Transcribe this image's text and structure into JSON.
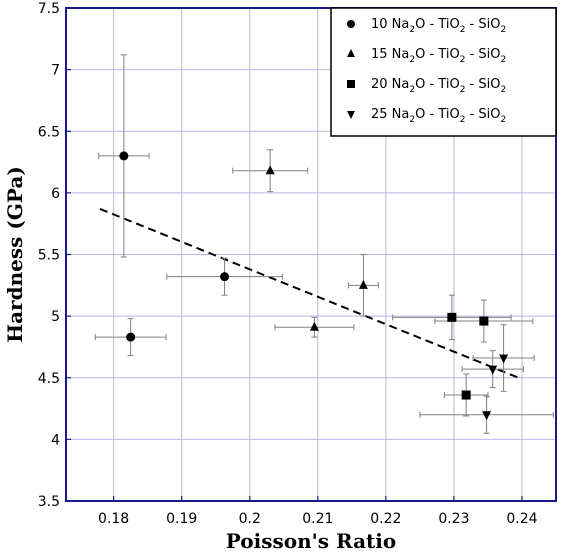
{
  "chart_data": {
    "type": "scatter",
    "xlabel": "Poisson's Ratio",
    "ylabel": "Hardness (GPa)",
    "xlim": [
      0.173,
      0.245
    ],
    "ylim": [
      3.5,
      7.5
    ],
    "xticks": [
      0.18,
      0.19,
      0.2,
      0.21,
      0.22,
      0.23,
      0.24
    ],
    "xtick_labels": [
      "0.18",
      "0.19",
      "0.2",
      "0.21",
      "0.22",
      "0.23",
      "0.24"
    ],
    "yticks": [
      3.5,
      4,
      4.5,
      5,
      5.5,
      6,
      6.5,
      7,
      7.5
    ],
    "ytick_labels": [
      "3.5",
      "4",
      "4.5",
      "5",
      "5.5",
      "6",
      "6.5",
      "7",
      "7.5"
    ],
    "grid": true,
    "legend_position": "top-right",
    "series": [
      {
        "name": "10 Na2O - TiO2 - SiO2",
        "legend": {
          "pre": "10 Na",
          "sub1": "2",
          "mid": "O - TiO",
          "sub2": "2",
          "mid2": " - SiO",
          "sub3": "2"
        },
        "marker": "circle",
        "points": [
          {
            "x": 0.1815,
            "y": 6.3,
            "xerr": 0.0037,
            "yerr_low": 0.82,
            "yerr_high": 0.82
          },
          {
            "x": 0.1825,
            "y": 4.83,
            "xerr": 0.0052,
            "yerr_low": 0.15,
            "yerr_high": 0.15
          },
          {
            "x": 0.1963,
            "y": 5.32,
            "xerr": 0.0085,
            "yerr_low": 0.15,
            "yerr_high": 0.15
          }
        ]
      },
      {
        "name": "15 Na2O - TiO2 - SiO2",
        "legend": {
          "pre": "15 Na",
          "sub1": "2",
          "mid": "O - TiO",
          "sub2": "2",
          "mid2": " - SiO",
          "sub3": "2"
        },
        "marker": "triangle-up",
        "points": [
          {
            "x": 0.203,
            "y": 6.18,
            "xerr": 0.0055,
            "yerr_low": 0.17,
            "yerr_high": 0.17
          },
          {
            "x": 0.2095,
            "y": 4.91,
            "xerr": 0.0058,
            "yerr_low": 0.08,
            "yerr_high": 0.08
          },
          {
            "x": 0.2167,
            "y": 5.25,
            "xerr": 0.0022,
            "yerr_low": 0.25,
            "yerr_high": 0.25
          }
        ]
      },
      {
        "name": "20 Na2O - TiO2 - SiO2",
        "legend": {
          "pre": "20 Na",
          "sub1": "2",
          "mid": "O - TiO",
          "sub2": "2",
          "mid2": " - SiO",
          "sub3": "2"
        },
        "marker": "square",
        "points": [
          {
            "x": 0.2297,
            "y": 4.99,
            "xerr": 0.0087,
            "yerr_low": 0.18,
            "yerr_high": 0.18
          },
          {
            "x": 0.2344,
            "y": 4.96,
            "xerr": 0.0072,
            "yerr_low": 0.17,
            "yerr_high": 0.17
          },
          {
            "x": 0.2318,
            "y": 4.36,
            "xerr": 0.0032,
            "yerr_low": 0.17,
            "yerr_high": 0.17
          }
        ]
      },
      {
        "name": "25 Na2O - TiO2 - SiO2",
        "legend": {
          "pre": "25 Na",
          "sub1": "2",
          "mid": "O - TiO",
          "sub2": "2",
          "mid2": " - SiO",
          "sub3": "2"
        },
        "marker": "triangle-down",
        "points": [
          {
            "x": 0.2373,
            "y": 4.66,
            "xerr": 0.0045,
            "yerr_low": 0.27,
            "yerr_high": 0.27
          },
          {
            "x": 0.2357,
            "y": 4.57,
            "xerr": 0.0045,
            "yerr_low": 0.15,
            "yerr_high": 0.15
          },
          {
            "x": 0.2348,
            "y": 4.2,
            "xerr": 0.0098,
            "yerr_low": 0.15,
            "yerr_high": 0.15
          }
        ]
      }
    ],
    "trendline": {
      "style": "dashed",
      "x": [
        0.178,
        0.2395
      ],
      "y": [
        5.87,
        4.5
      ]
    }
  }
}
